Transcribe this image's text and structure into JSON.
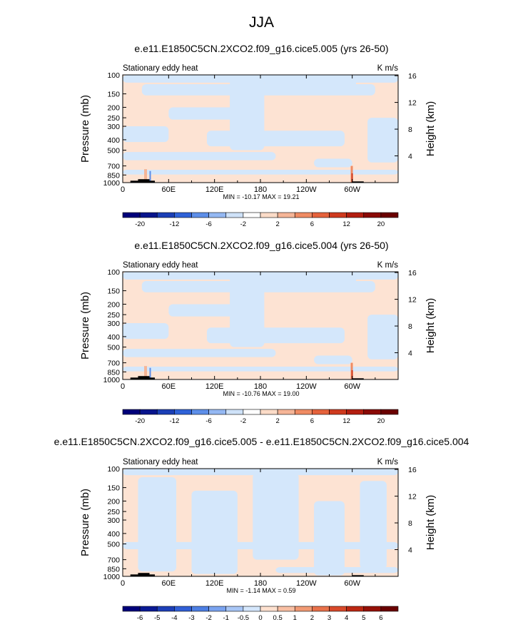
{
  "title": "JJA",
  "chart_data": [
    {
      "type": "heatmap",
      "title": "e.e11.E1850C5CN.2XCO2.f09_g16.cice5.005 (yrs 26-50)",
      "subtitle_left": "Stationary eddy heat",
      "units": "K m/s",
      "ylabel": "Pressure (mb)",
      "ylabel_right": "Height (km)",
      "x_ticks": [
        "0",
        "60E",
        "120E",
        "180",
        "120W",
        "60W"
      ],
      "y_ticks": [
        "100",
        "150",
        "200",
        "250",
        "300",
        "400",
        "500",
        "700",
        "850",
        "1000"
      ],
      "y_ticks_right": [
        "16",
        "12",
        "8",
        "4"
      ],
      "stats": "MIN = -10.17  MAX =  19.21",
      "min": -10.17,
      "max": 19.21,
      "colorbar_labels": [
        "-20",
        "-12",
        "-6",
        "-2",
        "2",
        "6",
        "12",
        "20"
      ]
    },
    {
      "type": "heatmap",
      "title": "e.e11.E1850C5CN.2XCO2.f09_g16.cice5.004 (yrs 26-50)",
      "subtitle_left": "Stationary eddy heat",
      "units": "K m/s",
      "ylabel": "Pressure (mb)",
      "ylabel_right": "Height (km)",
      "x_ticks": [
        "0",
        "60E",
        "120E",
        "180",
        "120W",
        "60W"
      ],
      "y_ticks": [
        "100",
        "150",
        "200",
        "250",
        "300",
        "400",
        "500",
        "700",
        "850",
        "1000"
      ],
      "y_ticks_right": [
        "16",
        "12",
        "8",
        "4"
      ],
      "stats": "MIN = -10.76  MAX =  19.00",
      "min": -10.76,
      "max": 19.0,
      "colorbar_labels": [
        "-20",
        "-12",
        "-6",
        "-2",
        "2",
        "6",
        "12",
        "20"
      ]
    },
    {
      "type": "heatmap",
      "title": "e.e11.E1850C5CN.2XCO2.f09_g16.cice5.005 - e.e11.E1850C5CN.2XCO2.f09_g16.cice5.004",
      "subtitle_left": "Stationary eddy heat",
      "units": "K m/s",
      "ylabel": "Pressure (mb)",
      "ylabel_right": "Height (km)",
      "x_ticks": [
        "0",
        "60E",
        "120E",
        "180",
        "120W",
        "60W"
      ],
      "y_ticks": [
        "100",
        "150",
        "200",
        "250",
        "300",
        "400",
        "500",
        "700",
        "850",
        "1000"
      ],
      "y_ticks_right": [
        "16",
        "12",
        "8",
        "4"
      ],
      "stats": "MIN = -1.14  MAX =  0.59",
      "min": -1.14,
      "max": 0.59,
      "colorbar_labels": [
        "-6",
        "-5",
        "-4",
        "-3",
        "-2",
        "-1",
        "-0.5",
        "0",
        "0.5",
        "1",
        "2",
        "3",
        "4",
        "5",
        "6"
      ]
    }
  ],
  "colors": {
    "colorbar_8": [
      "#00007a",
      "#08148c",
      "#1b3fb6",
      "#2f62d8",
      "#5d8ee8",
      "#94b8f2",
      "#cfe2f8",
      "#ffffff",
      "#fbdcc8",
      "#f5b597",
      "#ef8b63",
      "#e5623c",
      "#cf3a1e",
      "#b31e10",
      "#8a0a05",
      "#6a0000"
    ],
    "colorbar_15": [
      "#00007a",
      "#0a1a94",
      "#1d3fb8",
      "#315fd6",
      "#4d7fe3",
      "#7aa3ef",
      "#a8c6f5",
      "#d4e6fb",
      "#fde0cf",
      "#f8bfa3",
      "#f19a74",
      "#e8714a",
      "#d8492a",
      "#bc2712",
      "#951007",
      "#6a0000"
    ],
    "neg_fill": "#d4e7fb",
    "pos_fill": "#fde3d3"
  }
}
